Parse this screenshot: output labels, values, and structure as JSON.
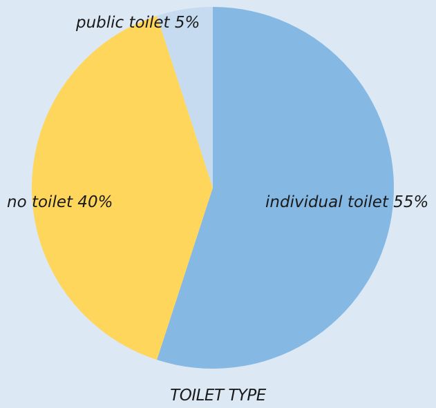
{
  "chart_data": {
    "type": "pie",
    "title": "TOILET TYPE",
    "slices": [
      {
        "label": "individual toilet 55%",
        "category": "individual toilet",
        "value": 55,
        "color": "#85b8e3"
      },
      {
        "label": "no toilet 40%",
        "category": "no toilet",
        "value": 40,
        "color": "#ffd65c"
      },
      {
        "label": "public toilet 5%",
        "category": "public toilet",
        "value": 5,
        "color": "#c6dbf0"
      }
    ],
    "legend": "none",
    "background": "#dde8f5"
  }
}
